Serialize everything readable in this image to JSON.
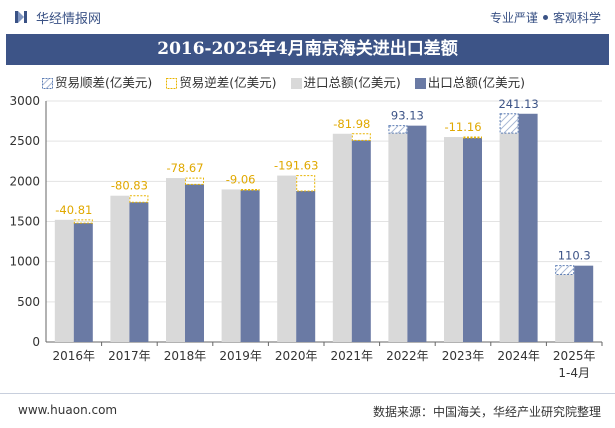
{
  "header": {
    "brand": "华经情报网",
    "tagline_left": "专业严谨",
    "tagline_right": "客观科学"
  },
  "footer": {
    "site": "www.huaon.com",
    "source": "数据来源：中国海关，华经产业研究院整理"
  },
  "colors": {
    "import": "#d9d9d9",
    "export": "#6a7aa4",
    "surplus": "#5f7fb5",
    "deficit": "#e8b400",
    "title_bg": "#3d5487"
  },
  "chart_data": {
    "type": "bar",
    "title": "2016-2025年4月南京海关进出口差额",
    "categories": [
      "2016年",
      "2017年",
      "2018年",
      "2019年",
      "2020年",
      "2021年",
      "2022年",
      "2023年",
      "2024年",
      "2025年"
    ],
    "category_sublabels": [
      "",
      "",
      "",
      "",
      "",
      "",
      "",
      "",
      "",
      "1-4月"
    ],
    "ylim": [
      0,
      3000
    ],
    "yticks": [
      0,
      500,
      1000,
      1500,
      2000,
      2500,
      3000
    ],
    "series": [
      {
        "name": "贸易顺差(亿美元)",
        "role": "surplus",
        "values": [
          null,
          null,
          null,
          null,
          null,
          null,
          93.13,
          null,
          241.13,
          110.3
        ]
      },
      {
        "name": "贸易逆差(亿美元)",
        "role": "deficit",
        "values": [
          -40.81,
          -80.83,
          -78.67,
          -9.06,
          -191.63,
          -81.98,
          null,
          -11.16,
          null,
          null
        ]
      },
      {
        "name": "进口总额(亿美元)",
        "role": "import",
        "values": [
          1520.8,
          1820.8,
          2040.7,
          1899.1,
          2071.6,
          2591.9,
          2600.0,
          2551.2,
          2600.0,
          840.0
        ]
      },
      {
        "name": "出口总额(亿美元)",
        "role": "export",
        "values": [
          1480.0,
          1740.0,
          1962.0,
          1890.0,
          1880.0,
          2510.0,
          2693.1,
          2540.0,
          2841.1,
          950.3
        ]
      }
    ],
    "data_labels": [
      "-40.81",
      "-80.83",
      "-78.67",
      "-9.06",
      "-191.63",
      "-81.98",
      "93.13",
      "-11.16",
      "241.13",
      "110.3"
    ]
  }
}
